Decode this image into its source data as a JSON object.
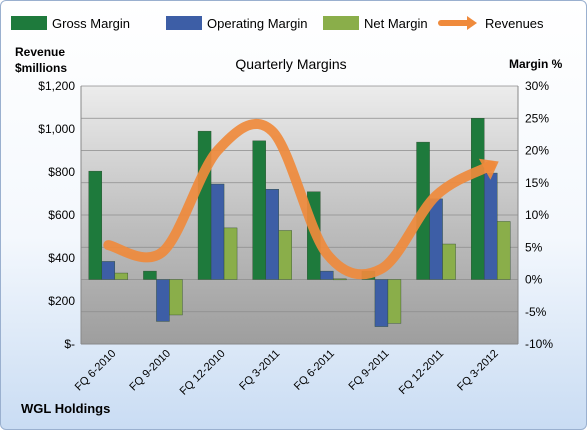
{
  "chart_data": {
    "type": "bar",
    "title": "Quarterly Margins",
    "company": "WGL Holdings",
    "left_axis_label": [
      "Revenue",
      "$millions"
    ],
    "right_axis_label": "Margin %",
    "left_ticks": [
      "$-",
      "$200",
      "$400",
      "$600",
      "$800",
      "$1,000",
      "$1,200"
    ],
    "right_ticks": [
      "-10%",
      "-5%",
      "0%",
      "5%",
      "10%",
      "15%",
      "20%",
      "25%",
      "30%"
    ],
    "categories": [
      "FQ 6-2010",
      "FQ 9-2010",
      "FQ 12-2010",
      "FQ 3-2011",
      "FQ 6-2011",
      "FQ 9-2011",
      "FQ 12-2011",
      "FQ 3-2012"
    ],
    "revenue_ylim": [
      0,
      1200
    ],
    "margin_ylim": [
      -10,
      30
    ],
    "series": [
      {
        "name": "Gross Margin",
        "axis": "right",
        "color": "#1e7a3c",
        "values": [
          16.8,
          1.3,
          23.0,
          21.5,
          13.6,
          1.3,
          21.3,
          25.0
        ]
      },
      {
        "name": "Operating Margin",
        "axis": "right",
        "color": "#3d5ea6",
        "values": [
          2.8,
          -6.5,
          14.8,
          14.0,
          1.3,
          -7.3,
          12.5,
          16.5
        ]
      },
      {
        "name": "Net Margin",
        "axis": "right",
        "color": "#8aae4a",
        "values": [
          1.0,
          -5.5,
          8.0,
          7.6,
          0.1,
          -6.8,
          5.5,
          9.0
        ]
      },
      {
        "name": "Revenues",
        "axis": "left",
        "type": "line",
        "color": "#ef8a3c",
        "values": [
          460,
          430,
          900,
          990,
          420,
          350,
          690,
          830
        ]
      }
    ],
    "grid": true,
    "legend_position": "top"
  }
}
